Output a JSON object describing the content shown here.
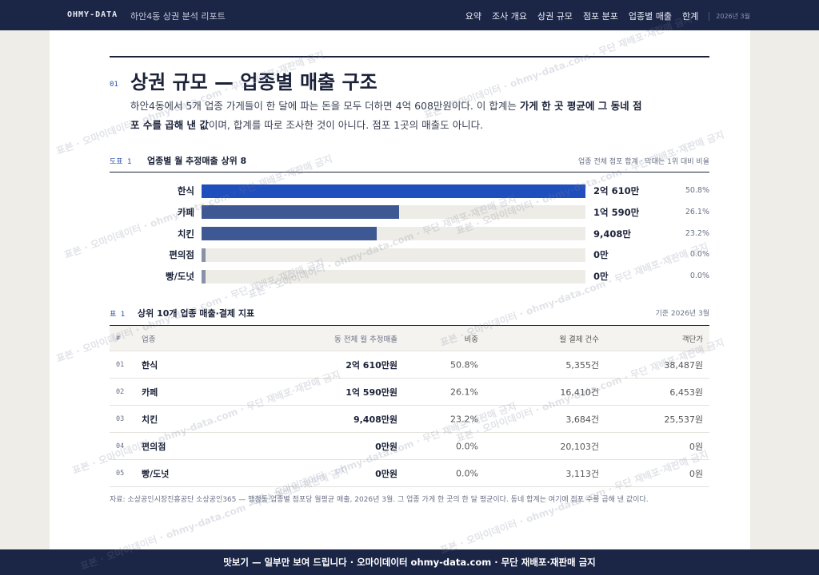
{
  "nav": {
    "logo": "OHMY-DATA",
    "subtitle": "하안4동 상권 분석 리포트",
    "links": [
      "요약",
      "조사 개요",
      "상권 규모",
      "점포 분포",
      "업종별 매출",
      "한계"
    ],
    "date": "2026년 3월"
  },
  "section": {
    "number": "01",
    "title": "상권 규모 — 업종별 매출 구조",
    "lead": [
      "하안4동에서 5개 업종 가게들이 한 달에 파는 돈을 모두 더하면 4억 608만원이다. 이 합계는 ",
      "가게 한 곳 평균에 그 동네 점포 수를 곱해 낸 값",
      "이며, 합계를 따로 조사한 것이 아니다. 점포 1곳의 매출도 아니다."
    ]
  },
  "chart_data": {
    "type": "hbar",
    "label": "도표 1",
    "title": "업종별 월 추정매출 상위 8",
    "note": "업종 전체 점포 합계 · 막대는 1위 대비 비율",
    "categories": [
      "한식",
      "카페",
      "치킨",
      "편의점",
      "빵/도넛"
    ],
    "values": [
      20610,
      10590,
      9408,
      0,
      0
    ],
    "value_labels": [
      "2억 610만",
      "1억 590만",
      "9,408만",
      "0만",
      "0만"
    ],
    "shares": [
      50.8,
      26.1,
      23.2,
      0.0,
      0.0
    ],
    "share_labels": [
      "50.8%",
      "26.1%",
      "23.2%",
      "0.0%",
      "0.0%"
    ],
    "colors": [
      "#1f4ebd",
      "#3e5894",
      "#3e5894",
      "#8a91a6",
      "#8a91a6"
    ]
  },
  "table": {
    "label": "표 1",
    "title": "상위 10개 업종 매출·결제 지표",
    "note": "기준 2026년 3월",
    "header": [
      "#",
      "업종",
      "동 전체 월 추정매출",
      "비중",
      "월 결제 건수",
      "객단가"
    ],
    "rows": [
      [
        "01",
        "한식",
        "2억 610만원",
        "50.8%",
        "5,355건",
        "38,487원"
      ],
      [
        "02",
        "카페",
        "1억 590만원",
        "26.1%",
        "16,410건",
        "6,453원"
      ],
      [
        "03",
        "치킨",
        "9,408만원",
        "23.2%",
        "3,684건",
        "25,537원"
      ],
      [
        "04",
        "편의점",
        "0만원",
        "0.0%",
        "20,103건",
        "0원"
      ],
      [
        "05",
        "빵/도넛",
        "0만원",
        "0.0%",
        "3,113건",
        "0원"
      ]
    ]
  },
  "source": "자료: 소상공인시장진흥공단 소상공인365 — 행정동·업종별 점포당 월평균 매출, 2026년 3월. 그 업종 가게 한 곳의 한 달 평균이다. 동네 합계는 여기에 점포 수를 곱해 낸 값이다.",
  "footer": "맛보기 — 일부만 보여 드립니다 · 오마이데이터 ohmy-data.com · 무단 재배포·재판매 금지",
  "watermark": "표본 · 오마이데이터 · ohmy-data.com · 무단 재배포·재판매 금지"
}
